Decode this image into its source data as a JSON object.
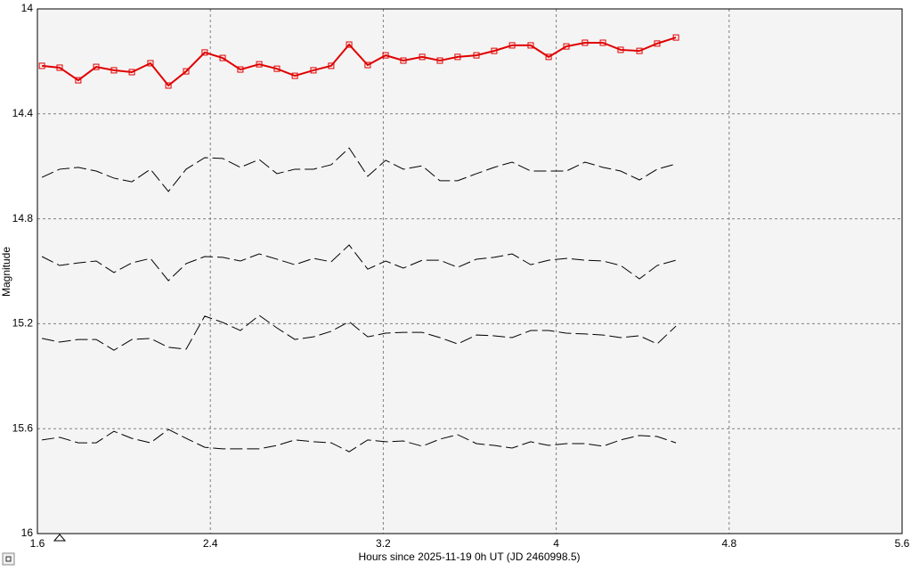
{
  "chart_data": {
    "type": "line",
    "xlabel": "Hours since 2025-11-19 0h UT (JD 2460998.5)",
    "ylabel": "Magnitude",
    "x": [
      1.621,
      1.703,
      1.789,
      1.872,
      1.954,
      2.037,
      2.123,
      2.206,
      2.288,
      2.374,
      2.457,
      2.539,
      2.626,
      2.708,
      2.791,
      2.877,
      2.959,
      3.042,
      3.128,
      3.211,
      3.293,
      3.38,
      3.462,
      3.544,
      3.631,
      3.713,
      3.796,
      3.882,
      3.965,
      4.047,
      4.133,
      4.216,
      4.298,
      4.385,
      4.467,
      4.554
    ],
    "series": [
      {
        "color": "#e00000",
        "marker": "square",
        "dashed": false,
        "values": [
          14.217,
          14.224,
          14.272,
          14.221,
          14.234,
          14.241,
          14.207,
          14.292,
          14.238,
          14.166,
          14.187,
          14.231,
          14.211,
          14.228,
          14.255,
          14.234,
          14.217,
          14.136,
          14.214,
          14.177,
          14.197,
          14.183,
          14.197,
          14.183,
          14.177,
          14.16,
          14.139,
          14.139,
          14.183,
          14.143,
          14.129,
          14.129,
          14.156,
          14.16,
          14.132,
          14.109
        ]
      },
      {
        "color": "#000000",
        "dashed": true,
        "values": [
          14.642,
          14.611,
          14.604,
          14.618,
          14.645,
          14.659,
          14.611,
          14.696,
          14.611,
          14.567,
          14.57,
          14.604,
          14.574,
          14.628,
          14.611,
          14.611,
          14.594,
          14.53,
          14.638,
          14.577,
          14.611,
          14.598,
          14.655,
          14.655,
          14.628,
          14.604,
          14.584,
          14.618,
          14.618,
          14.618,
          14.584,
          14.604,
          14.618,
          14.652,
          14.611,
          14.591
        ]
      },
      {
        "color": "#000000",
        "dashed": true,
        "values": [
          14.944,
          14.978,
          14.968,
          14.961,
          15.005,
          14.968,
          14.951,
          15.036,
          14.971,
          14.944,
          14.947,
          14.961,
          14.934,
          14.954,
          14.975,
          14.951,
          14.964,
          14.9,
          14.992,
          14.961,
          14.988,
          14.958,
          14.958,
          14.985,
          14.954,
          14.947,
          14.934,
          14.975,
          14.958,
          14.951,
          14.958,
          14.961,
          14.978,
          15.029,
          14.978,
          14.958
        ]
      },
      {
        "color": "#000000",
        "dashed": true,
        "values": [
          15.256,
          15.27,
          15.26,
          15.26,
          15.301,
          15.26,
          15.256,
          15.29,
          15.297,
          15.171,
          15.195,
          15.226,
          15.168,
          15.216,
          15.26,
          15.25,
          15.229,
          15.192,
          15.25,
          15.236,
          15.233,
          15.233,
          15.253,
          15.277,
          15.243,
          15.246,
          15.253,
          15.226,
          15.226,
          15.236,
          15.239,
          15.243,
          15.253,
          15.246,
          15.277,
          15.209
        ]
      },
      {
        "color": "#000000",
        "dashed": true,
        "values": [
          15.643,
          15.633,
          15.654,
          15.654,
          15.61,
          15.637,
          15.654,
          15.603,
          15.637,
          15.671,
          15.677,
          15.677,
          15.677,
          15.664,
          15.643,
          15.65,
          15.654,
          15.688,
          15.643,
          15.65,
          15.647,
          15.667,
          15.64,
          15.623,
          15.657,
          15.664,
          15.674,
          15.65,
          15.664,
          15.657,
          15.657,
          15.667,
          15.643,
          15.626,
          15.63,
          15.654
        ]
      }
    ],
    "xlim": [
      1.6,
      5.6
    ],
    "xticks": [
      1.6,
      2.4,
      3.2,
      4,
      4.8,
      5.6
    ],
    "ylim": [
      16,
      14
    ],
    "yticks": [
      14,
      14.4,
      14.8,
      15.2,
      15.6,
      16
    ],
    "grid": true
  }
}
